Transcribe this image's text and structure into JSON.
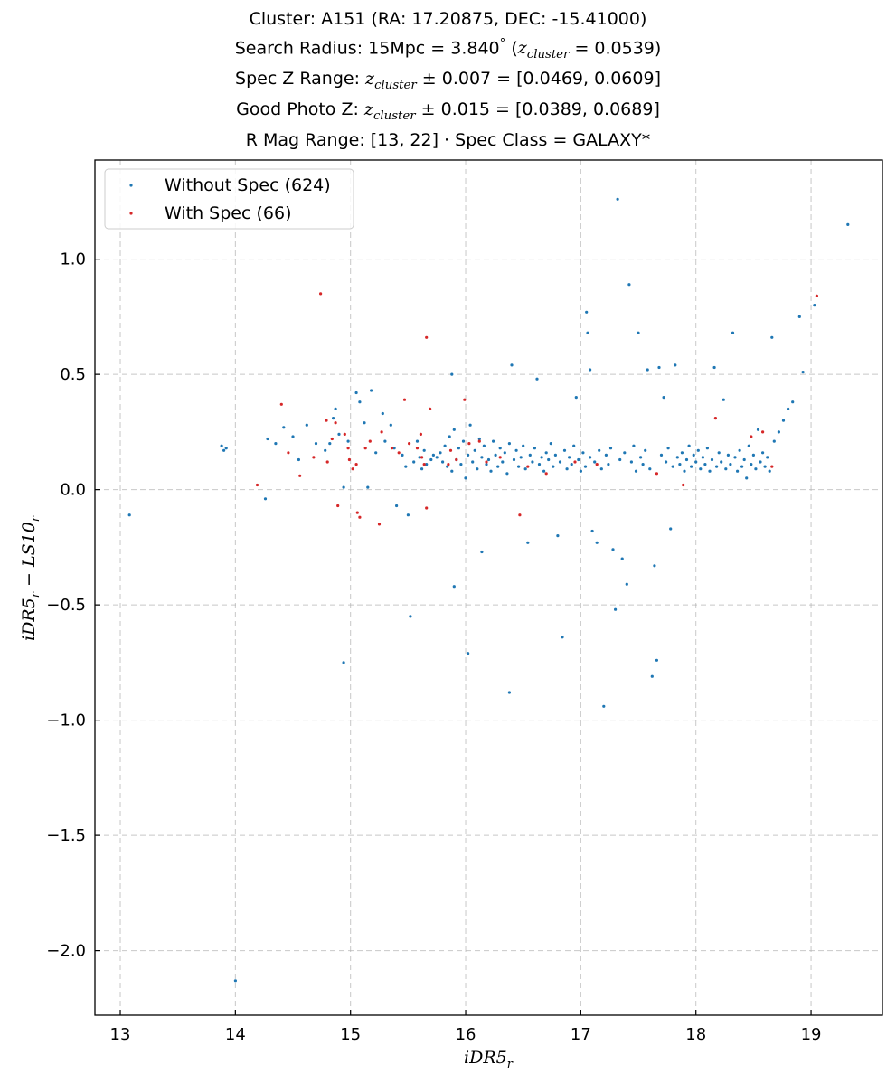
{
  "titles": {
    "line1": "Cluster: A151 (RA: 17.20875, DEC: -15.41000)",
    "line2_pre": "Search Radius: 15Mpc = 3.840",
    "line2_deg": "°",
    "line2_z": "z",
    "line2_zsub": "cluster",
    "line2_val": "= 0.0539)",
    "line3_pre": "Spec Z Range:",
    "line3_z": "z",
    "line3_zsub": "cluster",
    "line3_post": "± 0.007 = [0.0469, 0.0609]",
    "line4_pre": "Good Photo Z:",
    "line4_z": "z",
    "line4_zsub": "cluster",
    "line4_post": "± 0.015 = [0.0389, 0.0689]",
    "line5": "R Mag Range: [13, 22] · Spec Class = GALAXY*"
  },
  "chart_data": {
    "type": "scatter",
    "xlabel": "iDR5",
    "xlabel_sub": "r",
    "ylabel": "iDR5",
    "ylabel_sub": "r",
    "ylabel_mid": " − LS10",
    "ylabel_sub2": "r",
    "xlim": [
      12.78,
      19.62
    ],
    "ylim": [
      -2.28,
      1.43
    ],
    "xticks": [
      13,
      14,
      15,
      16,
      17,
      18,
      19
    ],
    "yticks": [
      -2.0,
      -1.5,
      -1.0,
      -0.5,
      0.0,
      0.5,
      1.0
    ],
    "xtick_labels": [
      "13",
      "14",
      "15",
      "16",
      "17",
      "18",
      "19"
    ],
    "ytick_labels": [
      "−2.0",
      "−1.5",
      "−1.0",
      "−0.5",
      "0.0",
      "0.5",
      "1.0"
    ],
    "grid": true,
    "legend_position": "top-left",
    "series": [
      {
        "name": "Without Spec (624)",
        "color": "#1f77b4",
        "points": [
          [
            13.08,
            -0.11
          ],
          [
            13.88,
            0.19
          ],
          [
            13.9,
            0.17
          ],
          [
            13.92,
            0.18
          ],
          [
            14.0,
            -2.13
          ],
          [
            14.26,
            -0.04
          ],
          [
            14.28,
            0.22
          ],
          [
            14.35,
            0.2
          ],
          [
            14.42,
            0.27
          ],
          [
            14.5,
            0.23
          ],
          [
            14.55,
            0.13
          ],
          [
            14.62,
            0.28
          ],
          [
            14.7,
            0.2
          ],
          [
            14.78,
            0.17
          ],
          [
            14.82,
            0.2
          ],
          [
            14.85,
            0.31
          ],
          [
            14.87,
            0.35
          ],
          [
            14.9,
            0.24
          ],
          [
            14.94,
            0.01
          ],
          [
            14.94,
            -0.75
          ],
          [
            14.98,
            0.21
          ],
          [
            15.05,
            0.42
          ],
          [
            15.08,
            0.38
          ],
          [
            15.12,
            0.29
          ],
          [
            15.15,
            0.01
          ],
          [
            15.18,
            0.43
          ],
          [
            15.22,
            0.16
          ],
          [
            15.28,
            0.33
          ],
          [
            15.3,
            0.21
          ],
          [
            15.35,
            0.28
          ],
          [
            15.38,
            0.18
          ],
          [
            15.4,
            -0.07
          ],
          [
            15.45,
            0.15
          ],
          [
            15.48,
            0.1
          ],
          [
            15.5,
            -0.11
          ],
          [
            15.52,
            -0.55
          ],
          [
            15.55,
            0.12
          ],
          [
            15.58,
            0.21
          ],
          [
            15.6,
            0.14
          ],
          [
            15.62,
            0.09
          ],
          [
            15.64,
            0.17
          ],
          [
            15.66,
            0.11
          ],
          [
            15.7,
            0.13
          ],
          [
            15.72,
            0.15
          ],
          [
            15.75,
            0.14
          ],
          [
            15.78,
            0.16
          ],
          [
            15.8,
            0.12
          ],
          [
            15.82,
            0.19
          ],
          [
            15.84,
            0.1
          ],
          [
            15.86,
            0.23
          ],
          [
            15.88,
            0.5
          ],
          [
            15.88,
            0.08
          ],
          [
            15.9,
            0.26
          ],
          [
            15.9,
            -0.42
          ],
          [
            15.92,
            0.13
          ],
          [
            15.94,
            0.18
          ],
          [
            15.96,
            0.11
          ],
          [
            15.98,
            0.21
          ],
          [
            16.0,
            0.05
          ],
          [
            16.02,
            0.15
          ],
          [
            16.02,
            -0.71
          ],
          [
            16.04,
            0.28
          ],
          [
            16.06,
            0.12
          ],
          [
            16.08,
            0.17
          ],
          [
            16.1,
            0.09
          ],
          [
            16.12,
            0.22
          ],
          [
            16.14,
            0.14
          ],
          [
            16.14,
            -0.27
          ],
          [
            16.16,
            0.19
          ],
          [
            16.18,
            0.11
          ],
          [
            16.2,
            0.13
          ],
          [
            16.22,
            0.08
          ],
          [
            16.24,
            0.21
          ],
          [
            16.26,
            0.15
          ],
          [
            16.28,
            0.1
          ],
          [
            16.3,
            0.18
          ],
          [
            16.32,
            0.12
          ],
          [
            16.34,
            0.16
          ],
          [
            16.36,
            0.07
          ],
          [
            16.38,
            0.2
          ],
          [
            16.38,
            -0.88
          ],
          [
            16.4,
            0.54
          ],
          [
            16.42,
            0.13
          ],
          [
            16.44,
            0.17
          ],
          [
            16.46,
            0.1
          ],
          [
            16.48,
            0.14
          ],
          [
            16.5,
            0.19
          ],
          [
            16.52,
            0.09
          ],
          [
            16.54,
            -0.23
          ],
          [
            16.56,
            0.15
          ],
          [
            16.58,
            0.12
          ],
          [
            16.6,
            0.18
          ],
          [
            16.62,
            0.48
          ],
          [
            16.64,
            0.11
          ],
          [
            16.66,
            0.14
          ],
          [
            16.68,
            0.08
          ],
          [
            16.7,
            0.16
          ],
          [
            16.72,
            0.13
          ],
          [
            16.74,
            0.2
          ],
          [
            16.76,
            0.1
          ],
          [
            16.78,
            0.15
          ],
          [
            16.8,
            -0.2
          ],
          [
            16.82,
            0.12
          ],
          [
            16.84,
            -0.64
          ],
          [
            16.86,
            0.17
          ],
          [
            16.88,
            0.09
          ],
          [
            16.9,
            0.14
          ],
          [
            16.92,
            0.11
          ],
          [
            16.94,
            0.19
          ],
          [
            16.96,
            0.4
          ],
          [
            16.98,
            0.13
          ],
          [
            17.0,
            0.08
          ],
          [
            17.02,
            0.16
          ],
          [
            17.04,
            0.1
          ],
          [
            17.05,
            0.77
          ],
          [
            17.06,
            0.68
          ],
          [
            17.08,
            0.52
          ],
          [
            17.08,
            0.14
          ],
          [
            17.1,
            -0.18
          ],
          [
            17.12,
            0.12
          ],
          [
            17.14,
            -0.23
          ],
          [
            17.16,
            0.17
          ],
          [
            17.18,
            0.09
          ],
          [
            17.2,
            -0.94
          ],
          [
            17.22,
            0.15
          ],
          [
            17.24,
            0.11
          ],
          [
            17.26,
            0.18
          ],
          [
            17.28,
            -0.26
          ],
          [
            17.3,
            -0.52
          ],
          [
            17.32,
            1.26
          ],
          [
            17.34,
            0.13
          ],
          [
            17.36,
            -0.3
          ],
          [
            17.38,
            0.16
          ],
          [
            17.4,
            -0.41
          ],
          [
            17.42,
            0.89
          ],
          [
            17.44,
            0.12
          ],
          [
            17.46,
            0.19
          ],
          [
            17.48,
            0.08
          ],
          [
            17.5,
            0.68
          ],
          [
            17.52,
            0.14
          ],
          [
            17.54,
            0.11
          ],
          [
            17.56,
            0.17
          ],
          [
            17.58,
            0.52
          ],
          [
            17.6,
            0.09
          ],
          [
            17.62,
            -0.81
          ],
          [
            17.64,
            -0.33
          ],
          [
            17.66,
            -0.74
          ],
          [
            17.68,
            0.53
          ],
          [
            17.7,
            0.15
          ],
          [
            17.72,
            0.4
          ],
          [
            17.74,
            0.12
          ],
          [
            17.76,
            0.18
          ],
          [
            17.78,
            -0.17
          ],
          [
            17.8,
            0.1
          ],
          [
            17.82,
            0.54
          ],
          [
            17.84,
            0.14
          ],
          [
            17.86,
            0.11
          ],
          [
            17.88,
            0.16
          ],
          [
            17.9,
            0.08
          ],
          [
            17.92,
            0.13
          ],
          [
            17.94,
            0.19
          ],
          [
            17.96,
            0.1
          ],
          [
            17.98,
            0.15
          ],
          [
            18.0,
            0.12
          ],
          [
            18.02,
            0.17
          ],
          [
            18.04,
            0.09
          ],
          [
            18.06,
            0.14
          ],
          [
            18.08,
            0.11
          ],
          [
            18.1,
            0.18
          ],
          [
            18.12,
            0.08
          ],
          [
            18.14,
            0.13
          ],
          [
            18.16,
            0.53
          ],
          [
            18.18,
            0.1
          ],
          [
            18.2,
            0.16
          ],
          [
            18.22,
            0.12
          ],
          [
            18.24,
            0.39
          ],
          [
            18.26,
            0.09
          ],
          [
            18.28,
            0.15
          ],
          [
            18.3,
            0.11
          ],
          [
            18.32,
            0.68
          ],
          [
            18.34,
            0.14
          ],
          [
            18.36,
            0.08
          ],
          [
            18.38,
            0.17
          ],
          [
            18.4,
            0.1
          ],
          [
            18.42,
            0.13
          ],
          [
            18.44,
            0.05
          ],
          [
            18.46,
            0.19
          ],
          [
            18.48,
            0.11
          ],
          [
            18.5,
            0.15
          ],
          [
            18.52,
            0.09
          ],
          [
            18.54,
            0.26
          ],
          [
            18.56,
            0.12
          ],
          [
            18.58,
            0.16
          ],
          [
            18.6,
            0.1
          ],
          [
            18.62,
            0.14
          ],
          [
            18.64,
            0.08
          ],
          [
            18.66,
            0.66
          ],
          [
            18.68,
            0.21
          ],
          [
            18.72,
            0.25
          ],
          [
            18.76,
            0.3
          ],
          [
            18.8,
            0.35
          ],
          [
            18.84,
            0.38
          ],
          [
            18.9,
            0.75
          ],
          [
            18.93,
            0.51
          ],
          [
            19.03,
            0.8
          ],
          [
            19.32,
            1.15
          ]
        ]
      },
      {
        "name": "With Spec (66)",
        "color": "#d62728",
        "points": [
          [
            14.19,
            0.02
          ],
          [
            14.4,
            0.37
          ],
          [
            14.46,
            0.16
          ],
          [
            14.56,
            0.06
          ],
          [
            14.68,
            0.14
          ],
          [
            14.74,
            0.85
          ],
          [
            14.79,
            0.3
          ],
          [
            14.8,
            0.12
          ],
          [
            14.84,
            0.22
          ],
          [
            14.87,
            0.29
          ],
          [
            14.89,
            -0.07
          ],
          [
            14.95,
            0.24
          ],
          [
            14.98,
            0.18
          ],
          [
            14.99,
            0.13
          ],
          [
            15.02,
            0.09
          ],
          [
            15.05,
            0.11
          ],
          [
            15.06,
            -0.1
          ],
          [
            15.08,
            -0.12
          ],
          [
            15.13,
            0.18
          ],
          [
            15.17,
            0.21
          ],
          [
            15.25,
            -0.15
          ],
          [
            15.27,
            0.25
          ],
          [
            15.36,
            0.18
          ],
          [
            15.42,
            0.16
          ],
          [
            15.47,
            0.39
          ],
          [
            15.51,
            0.2
          ],
          [
            15.58,
            0.18
          ],
          [
            15.61,
            0.24
          ],
          [
            15.62,
            0.14
          ],
          [
            15.64,
            0.11
          ],
          [
            15.66,
            0.66
          ],
          [
            15.66,
            -0.08
          ],
          [
            15.69,
            0.35
          ],
          [
            15.85,
            0.11
          ],
          [
            15.87,
            0.17
          ],
          [
            15.92,
            0.13
          ],
          [
            15.99,
            0.39
          ],
          [
            16.03,
            0.2
          ],
          [
            16.12,
            0.21
          ],
          [
            16.18,
            0.12
          ],
          [
            16.3,
            0.14
          ],
          [
            16.47,
            -0.11
          ],
          [
            16.54,
            0.1
          ],
          [
            16.7,
            0.07
          ],
          [
            16.95,
            0.12
          ],
          [
            17.14,
            0.11
          ],
          [
            17.66,
            0.07
          ],
          [
            17.89,
            0.02
          ],
          [
            18.17,
            0.31
          ],
          [
            18.48,
            0.23
          ],
          [
            18.58,
            0.25
          ],
          [
            18.66,
            0.1
          ],
          [
            19.05,
            0.84
          ]
        ]
      }
    ]
  }
}
